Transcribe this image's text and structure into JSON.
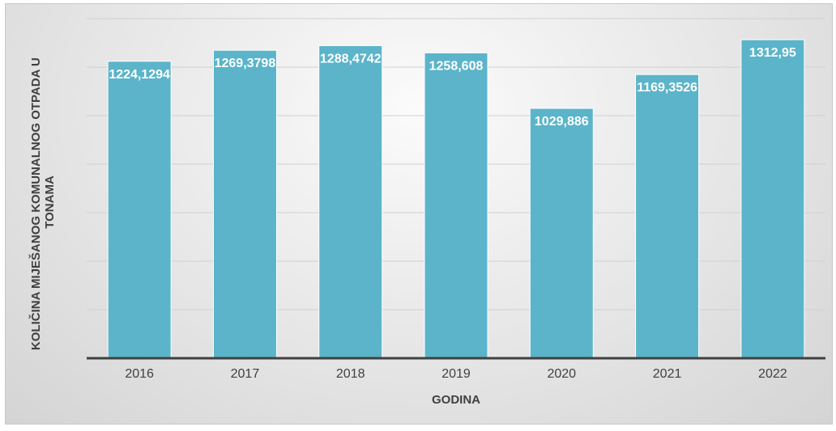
{
  "chart_data": {
    "type": "bar",
    "categories": [
      "2016",
      "2017",
      "2018",
      "2019",
      "2020",
      "2021",
      "2022"
    ],
    "values": [
      1224.1294,
      1269.3798,
      1288.4742,
      1258.608,
      1029.886,
      1169.3526,
      1312.95
    ],
    "data_labels": [
      "1224,1294",
      "1269,3798",
      "1288,4742",
      "1258,608",
      "1029,886",
      "1169,3526",
      "1312,95"
    ],
    "xlabel": "GODINA",
    "ylabel_lines": [
      "KOLIČINA MIJEŠANOG KOMUNALNOG OTPADA U",
      "TONAMA"
    ],
    "ylim": [
      0,
      1400
    ],
    "grid": true,
    "legend": "none",
    "bar_color": "#5bb4ca",
    "axis_color": "#404040"
  }
}
